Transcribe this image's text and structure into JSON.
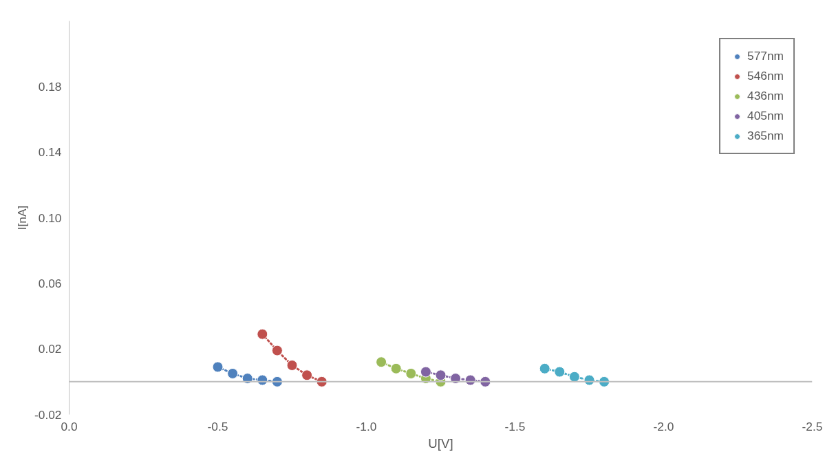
{
  "chart_data": {
    "type": "line",
    "xlabel": "U[V]",
    "ylabel": "I[nA]",
    "xlim": [
      0,
      -2.5
    ],
    "xticks": [
      {
        "value": 0,
        "label": "0.0"
      },
      -0.5,
      {
        "value": -1,
        "label": "-1.0"
      },
      -1.5,
      {
        "value": -2,
        "label": "-2.0"
      },
      -2.5
    ],
    "ylim": [
      -0.02,
      0.22
    ],
    "yticks": [
      -0.02,
      0.02,
      0.06,
      {
        "value": 0.1,
        "label": "0.10"
      },
      0.14,
      0.18
    ],
    "grid": false,
    "legend": "top right",
    "marker": "circle",
    "line_style": "dotted",
    "ref_lines": [
      {
        "axis": "y",
        "value": 0,
        "color": "#bfbfbf",
        "line_style": "solid"
      }
    ],
    "series": [
      {
        "name": "577nm",
        "color": "#4f81bd",
        "x": [
          -0.5,
          -0.55,
          -0.6,
          -0.65,
          -0.7
        ],
        "values": [
          0.009,
          0.005,
          0.002,
          0.001,
          0
        ]
      },
      {
        "name": "546nm",
        "color": "#c0504d",
        "x": [
          -0.65,
          -0.7,
          -0.75,
          -0.8,
          -0.85
        ],
        "values": [
          0.029,
          0.019,
          0.01,
          0.004,
          0
        ]
      },
      {
        "name": "436nm",
        "color": "#9bbb59",
        "x": [
          -1.05,
          -1.1,
          -1.15,
          -1.2,
          -1.25
        ],
        "values": [
          0.012,
          0.008,
          0.005,
          0.002,
          0
        ]
      },
      {
        "name": "405nm",
        "color": "#8064a2",
        "x": [
          -1.2,
          -1.25,
          -1.3,
          -1.35,
          -1.4
        ],
        "values": [
          0.006,
          0.004,
          0.002,
          0.001,
          0
        ]
      },
      {
        "name": "365nm",
        "color": "#4bacc6",
        "x": [
          -1.6,
          -1.65,
          -1.7,
          -1.75,
          -1.8
        ],
        "values": [
          0.008,
          0.006,
          0.003,
          0.001,
          0
        ]
      }
    ]
  }
}
